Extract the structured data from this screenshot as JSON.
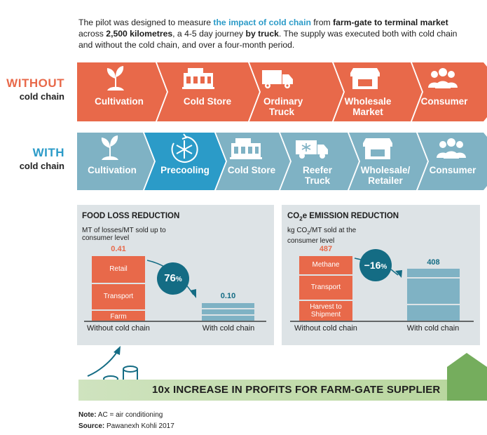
{
  "intro": {
    "t1": "The pilot was designed to measure ",
    "hl": "the impact of cold chain",
    "t2": " from ",
    "b1": "farm-gate to terminal market",
    "t3": " across ",
    "b2": "2,500 kilometres",
    "t4": ", a 4-5 day journey ",
    "b3": "by truck",
    "t5": ". The supply was executed both with cold chain and without the cold chain, and over a four-month period."
  },
  "without": {
    "label_big": "WITHOUT",
    "label_small": "cold chain",
    "steps": [
      "Cultivation",
      "Cold Store",
      "Ordinary Truck",
      "Wholesale Market",
      "Consumer"
    ]
  },
  "with": {
    "label_big": "WITH",
    "label_small": "cold chain",
    "steps": [
      "Cultivation",
      "Precooling",
      "Cold Store",
      "Reefer Truck",
      "Wholesale/ Retailer",
      "Consumer"
    ]
  },
  "colors": {
    "orange": "#e8694a",
    "blue": "#7fb2c4",
    "highlight_blue": "#2b9bc8",
    "dark_teal": "#146c84",
    "panel": "#dde3e6",
    "green": "#75ad5d"
  },
  "food_loss": {
    "title": "FOOD LOSS REDUCTION",
    "subtitle": "MT of losses/MT sold up to consumer level",
    "badge_value": "76",
    "badge_unit": "%"
  },
  "emission": {
    "title_pre": "CO",
    "title_sub": "2",
    "title_post": "e EMISSION REDUCTION",
    "subtitle_pre": "kg CO",
    "subtitle_sub": "2",
    "subtitle_post": "/MT sold at the consumer level",
    "badge_value": "−16",
    "badge_unit": "%"
  },
  "chart_data": [
    {
      "type": "bar",
      "title": "FOOD LOSS REDUCTION",
      "ylabel": "MT of losses/MT sold up to consumer level",
      "categories": [
        "Without cold chain",
        "With cold chain"
      ],
      "totals": [
        "0.41",
        "0.10"
      ],
      "total_values": [
        0.41,
        0.1
      ],
      "segments": [
        "Farm",
        "Transport",
        "Retail"
      ],
      "annotation": "76%"
    },
    {
      "type": "bar",
      "title": "CO2e EMISSION REDUCTION",
      "ylabel": "kg CO2/MT sold at the consumer level",
      "categories": [
        "Without cold chain",
        "With cold chain"
      ],
      "totals": [
        "487",
        "408"
      ],
      "total_values": [
        487,
        408
      ],
      "segments": [
        "Harvest to Shipment",
        "Transport",
        "Methane"
      ],
      "annotation": "−16%"
    }
  ],
  "banner": {
    "text": "10x INCREASE IN PROFITS FOR FARM-GATE SUPPLIER"
  },
  "note": {
    "label": "Note:",
    "text": " AC = air conditioning"
  },
  "source": {
    "label": "Source:",
    "text": " Pawanexh Kohli 2017"
  }
}
